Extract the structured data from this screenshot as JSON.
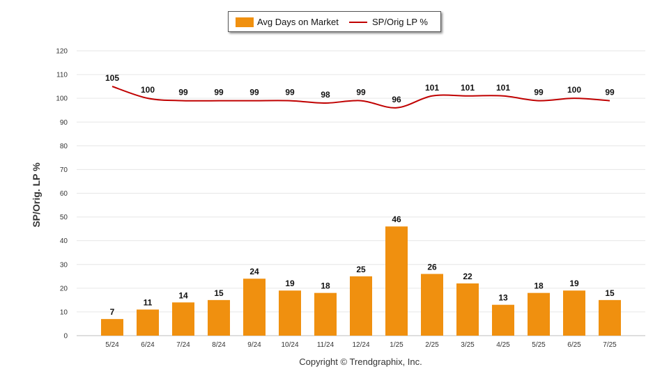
{
  "chart_data": {
    "type": "bar",
    "categories": [
      "5/24",
      "6/24",
      "7/24",
      "8/24",
      "9/24",
      "10/24",
      "11/24",
      "12/24",
      "1/25",
      "2/25",
      "3/25",
      "4/25",
      "5/25",
      "6/25",
      "7/25"
    ],
    "series": [
      {
        "name": "Avg Days on Market",
        "type": "bar",
        "color": "#f0900f",
        "values": [
          7,
          11,
          14,
          15,
          24,
          19,
          18,
          25,
          46,
          26,
          22,
          13,
          18,
          19,
          15
        ]
      },
      {
        "name": "SP/Orig LP %",
        "type": "line",
        "color": "#c00000",
        "values": [
          105,
          100,
          99,
          99,
          99,
          99,
          98,
          99,
          96,
          101,
          101,
          101,
          99,
          100,
          99
        ]
      }
    ],
    "ylabel": "SP/Orig. LP %",
    "ylim": [
      0,
      120
    ],
    "yticks": [
      0,
      10,
      20,
      30,
      40,
      50,
      60,
      70,
      80,
      90,
      100,
      110,
      120
    ],
    "grid": true,
    "legend": "top-center"
  },
  "footer": {
    "copyright": "Copyright © Trendgraphix, Inc."
  }
}
